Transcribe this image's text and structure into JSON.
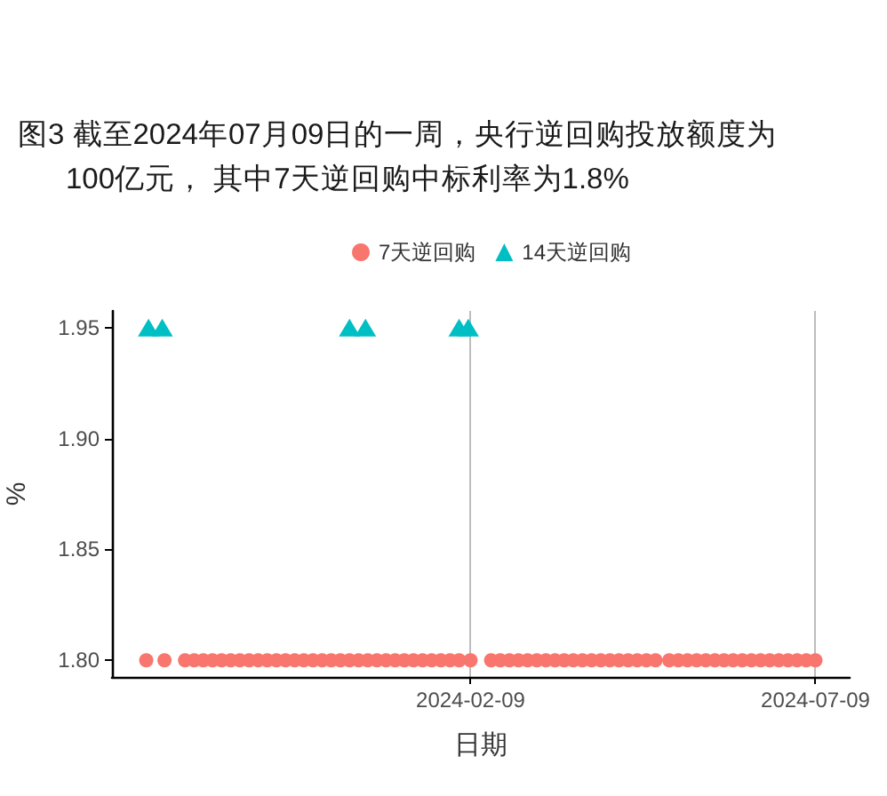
{
  "chart_data": {
    "type": "scatter",
    "title": "图3 截至2024年07月09日的一周，央行逆回购投放额度为100亿元， 其中7天逆回购中标利率为1.8%",
    "xlabel": "日期",
    "ylabel": "%",
    "xlim": [
      "2023-09-05",
      "2024-07-24"
    ],
    "xticks": [
      "2024-02-09",
      "2024-07-09"
    ],
    "ylim": [
      1.7925,
      1.9575
    ],
    "yticks": [
      {
        "value": 1.8,
        "label": "1.80"
      },
      1.85,
      {
        "value": 1.9,
        "label": "1.90"
      },
      1.95
    ],
    "grid": "x",
    "legend": "top",
    "series": [
      {
        "name": "7天逆回购",
        "color": "#f8766d",
        "marker": "circle",
        "x": [
          "2023-09-20",
          "2023-09-28",
          "2023-10-07",
          "2023-10-11",
          "2023-10-15",
          "2023-10-19",
          "2023-10-23",
          "2023-10-27",
          "2023-10-31",
          "2023-11-04",
          "2023-11-08",
          "2023-11-12",
          "2023-11-16",
          "2023-11-20",
          "2023-11-24",
          "2023-11-28",
          "2023-12-02",
          "2023-12-06",
          "2023-12-10",
          "2023-12-14",
          "2023-12-18",
          "2023-12-22",
          "2023-12-26",
          "2023-12-30",
          "2024-01-03",
          "2024-01-07",
          "2024-01-11",
          "2024-01-15",
          "2024-01-19",
          "2024-01-23",
          "2024-01-27",
          "2024-01-31",
          "2024-02-04",
          "2024-02-09",
          "2024-02-18",
          "2024-02-22",
          "2024-02-26",
          "2024-03-01",
          "2024-03-05",
          "2024-03-09",
          "2024-03-13",
          "2024-03-17",
          "2024-03-21",
          "2024-03-25",
          "2024-03-29",
          "2024-04-02",
          "2024-04-06",
          "2024-04-10",
          "2024-04-14",
          "2024-04-18",
          "2024-04-22",
          "2024-04-26",
          "2024-04-30",
          "2024-05-06",
          "2024-05-10",
          "2024-05-14",
          "2024-05-18",
          "2024-05-22",
          "2024-05-26",
          "2024-05-30",
          "2024-06-03",
          "2024-06-07",
          "2024-06-11",
          "2024-06-15",
          "2024-06-19",
          "2024-06-23",
          "2024-06-27",
          "2024-07-01",
          "2024-07-05",
          "2024-07-09"
        ],
        "values": [
          1.8,
          1.8,
          1.8,
          1.8,
          1.8,
          1.8,
          1.8,
          1.8,
          1.8,
          1.8,
          1.8,
          1.8,
          1.8,
          1.8,
          1.8,
          1.8,
          1.8,
          1.8,
          1.8,
          1.8,
          1.8,
          1.8,
          1.8,
          1.8,
          1.8,
          1.8,
          1.8,
          1.8,
          1.8,
          1.8,
          1.8,
          1.8,
          1.8,
          1.8,
          1.8,
          1.8,
          1.8,
          1.8,
          1.8,
          1.8,
          1.8,
          1.8,
          1.8,
          1.8,
          1.8,
          1.8,
          1.8,
          1.8,
          1.8,
          1.8,
          1.8,
          1.8,
          1.8,
          1.8,
          1.8,
          1.8,
          1.8,
          1.8,
          1.8,
          1.8,
          1.8,
          1.8,
          1.8,
          1.8,
          1.8,
          1.8,
          1.8,
          1.8,
          1.8,
          1.8
        ]
      },
      {
        "name": "14天逆回购",
        "color": "#00bfc4",
        "marker": "triangle",
        "x": [
          "2023-09-21",
          "2023-09-27",
          "2023-12-18",
          "2023-12-25",
          "2024-02-04",
          "2024-02-08"
        ],
        "values": [
          1.95,
          1.95,
          1.95,
          1.95,
          1.95,
          1.95
        ]
      }
    ]
  }
}
